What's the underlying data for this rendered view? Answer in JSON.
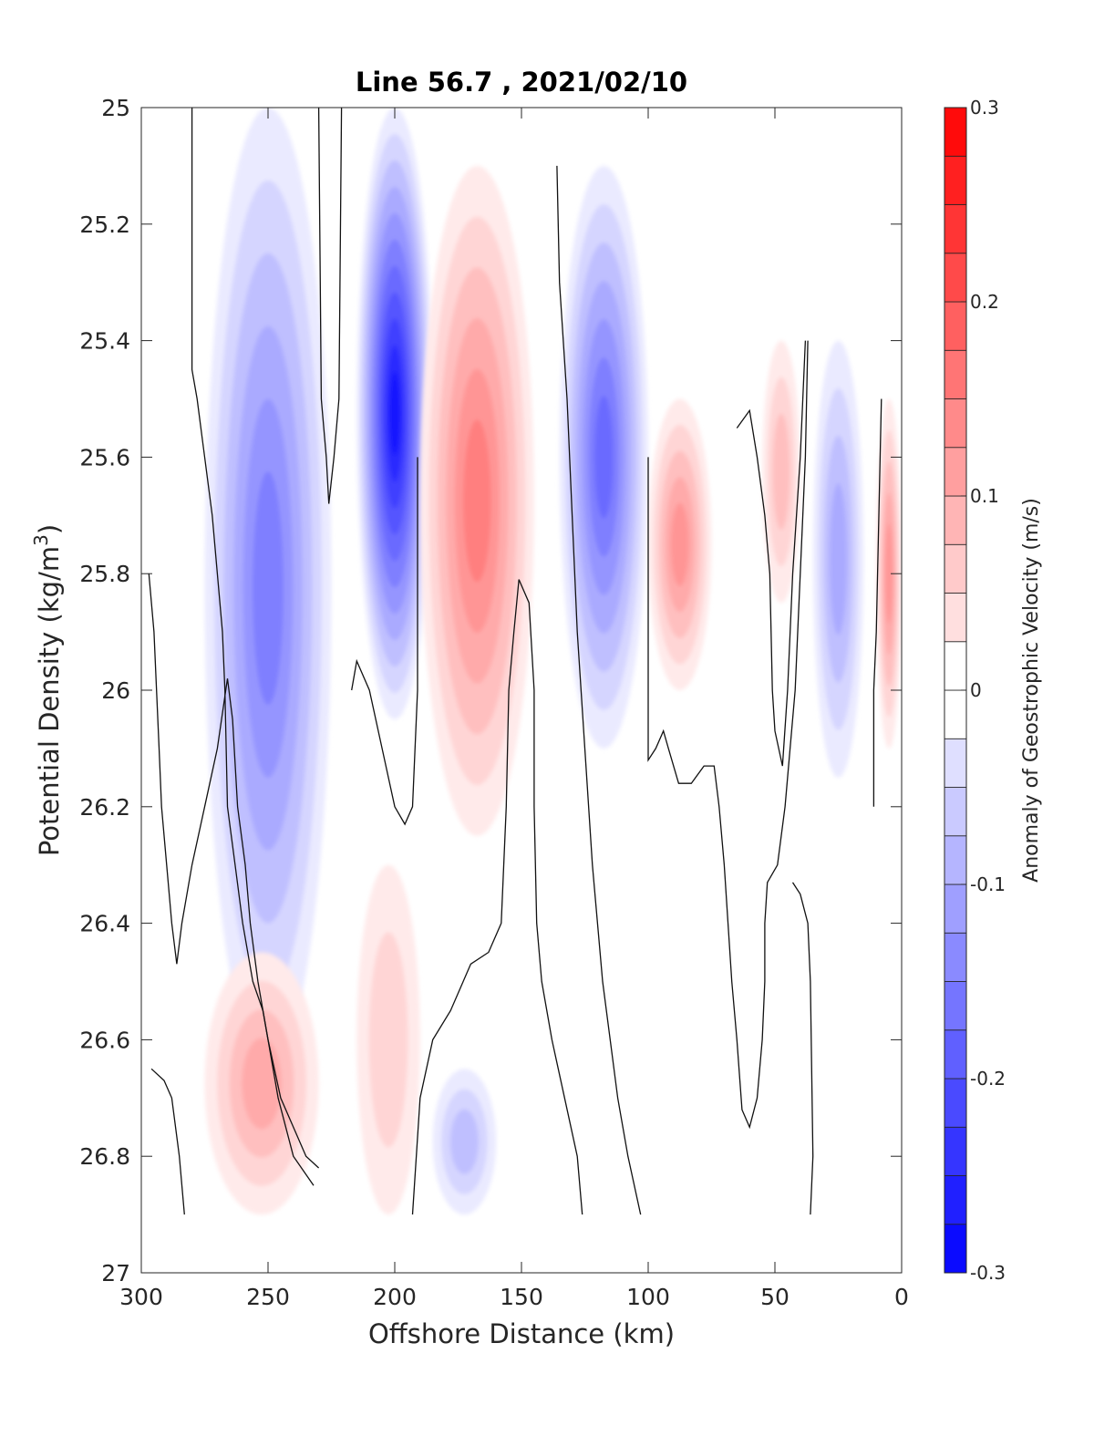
{
  "chart_data": {
    "type": "contour",
    "title": "Line 56.7 , 2021/02/10",
    "xlabel": "Offshore Distance (km)",
    "ylabel_main": "Potential Density (kg/m",
    "ylabel_sup": "3",
    "ylabel_close": ")",
    "xlim": [
      300,
      0
    ],
    "ylim": [
      27,
      25
    ],
    "y_reversed": true,
    "x_reversed": true,
    "xticks": [
      300,
      250,
      200,
      150,
      100,
      50,
      0
    ],
    "xtick_labels": [
      "300",
      "250",
      "200",
      "150",
      "100",
      "50",
      "0"
    ],
    "yticks": [
      25,
      25.2,
      25.4,
      25.6,
      25.8,
      26,
      26.2,
      26.4,
      26.6,
      26.8,
      27
    ],
    "ytick_labels": [
      "25",
      "25.2",
      "25.4",
      "25.6",
      "25.8",
      "26",
      "26.2",
      "26.4",
      "26.6",
      "26.8",
      "27"
    ],
    "grid": false,
    "colorbar": {
      "label": "Anomaly of Geostrophic Velocity (m/s)",
      "range": [
        -0.3,
        0.3
      ],
      "step": 0.025,
      "ticks": [
        0.3,
        0.2,
        0.1,
        0,
        -0.1,
        -0.2,
        -0.3
      ],
      "tick_labels": [
        "0.3",
        "0.2",
        "0.1",
        "0",
        "-0.1",
        "-0.2",
        "-0.3"
      ],
      "colormap": "blue-white-red",
      "negative_color": "#0000ff",
      "positive_color": "#ff0000"
    },
    "anomaly_regions": [
      {
        "name": "offshore-jet-negative",
        "sign": "negative",
        "peak": -0.15,
        "x_range": [
          275,
          225
        ],
        "y_range": [
          25.0,
          26.65
        ]
      },
      {
        "name": "core-jet-negative",
        "sign": "negative",
        "peak": -0.275,
        "x_range": [
          215,
          185
        ],
        "y_range": [
          25.0,
          26.05
        ]
      },
      {
        "name": "mid-section-positive",
        "sign": "positive",
        "peak": 0.15,
        "x_range": [
          190,
          145
        ],
        "y_range": [
          25.1,
          26.25
        ]
      },
      {
        "name": "nearshore-negative",
        "sign": "negative",
        "peak": -0.175,
        "x_range": [
          135,
          100
        ],
        "y_range": [
          25.1,
          26.1
        ]
      },
      {
        "name": "shelf-positive",
        "sign": "positive",
        "peak": 0.125,
        "x_range": [
          100,
          75
        ],
        "y_range": [
          25.5,
          26.0
        ]
      },
      {
        "name": "coastal-positive",
        "sign": "positive",
        "peak": 0.075,
        "x_range": [
          55,
          40
        ],
        "y_range": [
          25.4,
          25.85
        ]
      },
      {
        "name": "coastal-negative",
        "sign": "negative",
        "peak": -0.1,
        "x_range": [
          35,
          15
        ],
        "y_range": [
          25.4,
          26.15
        ]
      },
      {
        "name": "inshore-positive",
        "sign": "positive",
        "peak": 0.125,
        "x_range": [
          10,
          0
        ],
        "y_range": [
          25.5,
          26.1
        ]
      },
      {
        "name": "deep-offshore-positive",
        "sign": "positive",
        "peak": 0.1,
        "x_range": [
          275,
          230
        ],
        "y_range": [
          26.45,
          26.9
        ]
      },
      {
        "name": "deep-mid-positive",
        "sign": "positive",
        "peak": 0.05,
        "x_range": [
          215,
          190
        ],
        "y_range": [
          26.3,
          26.9
        ]
      },
      {
        "name": "deep-mid-negative",
        "sign": "negative",
        "peak": -0.075,
        "x_range": [
          185,
          160
        ],
        "y_range": [
          26.65,
          26.9
        ]
      }
    ],
    "zero_contours": [
      {
        "name": "zero-contour-1",
        "points": [
          [
            280,
            25.0
          ],
          [
            280,
            25.45
          ],
          [
            278,
            25.5
          ],
          [
            275,
            25.6
          ],
          [
            272,
            25.7
          ],
          [
            270,
            25.8
          ],
          [
            268,
            25.9
          ],
          [
            267,
            26.0
          ],
          [
            266,
            26.2
          ],
          [
            263,
            26.3
          ],
          [
            260,
            26.4
          ],
          [
            256,
            26.5
          ],
          [
            252,
            26.55
          ],
          [
            250,
            26.6
          ],
          [
            245,
            26.7
          ],
          [
            240,
            26.75
          ],
          [
            235,
            26.8
          ],
          [
            230,
            26.82
          ]
        ]
      },
      {
        "name": "zero-contour-2",
        "points": [
          [
            297,
            25.8
          ],
          [
            295,
            25.9
          ],
          [
            294,
            26.0
          ],
          [
            293,
            26.1
          ],
          [
            292,
            26.2
          ],
          [
            290,
            26.3
          ],
          [
            288,
            26.4
          ],
          [
            286,
            26.47
          ],
          [
            284,
            26.4
          ],
          [
            280,
            26.3
          ],
          [
            275,
            26.2
          ],
          [
            270,
            26.1
          ],
          [
            266,
            25.98
          ],
          [
            264,
            26.05
          ],
          [
            262,
            26.2
          ],
          [
            259,
            26.3
          ],
          [
            257,
            26.4
          ],
          [
            254,
            26.5
          ],
          [
            250,
            26.6
          ],
          [
            246,
            26.7
          ],
          [
            240,
            26.8
          ],
          [
            232,
            26.85
          ]
        ]
      },
      {
        "name": "zero-contour-3",
        "points": [
          [
            296,
            26.65
          ],
          [
            291,
            26.67
          ],
          [
            288,
            26.7
          ],
          [
            285,
            26.8
          ],
          [
            283,
            26.9
          ]
        ]
      },
      {
        "name": "zero-contour-4",
        "points": [
          [
            230,
            25.0
          ],
          [
            229,
            25.5
          ],
          [
            227,
            25.6
          ],
          [
            226,
            25.68
          ],
          [
            224,
            25.6
          ],
          [
            222,
            25.5
          ],
          [
            221,
            25.0
          ]
        ]
      },
      {
        "name": "zero-contour-5",
        "points": [
          [
            217,
            26.0
          ],
          [
            215,
            25.95
          ],
          [
            210,
            26.0
          ],
          [
            205,
            26.1
          ],
          [
            200,
            26.2
          ],
          [
            196,
            26.23
          ],
          [
            193,
            26.2
          ],
          [
            191,
            26.0
          ],
          [
            191,
            25.6
          ]
        ]
      },
      {
        "name": "zero-contour-6",
        "points": [
          [
            193,
            26.9
          ],
          [
            190,
            26.7
          ],
          [
            185,
            26.6
          ],
          [
            178,
            26.55
          ],
          [
            170,
            26.47
          ],
          [
            163,
            26.45
          ],
          [
            158,
            26.4
          ],
          [
            156,
            26.2
          ],
          [
            155,
            26.0
          ],
          [
            153,
            25.9
          ],
          [
            151,
            25.81
          ],
          [
            147,
            25.85
          ],
          [
            145,
            26.0
          ],
          [
            145,
            26.2
          ],
          [
            144,
            26.4
          ],
          [
            142,
            26.5
          ],
          [
            138,
            26.6
          ],
          [
            133,
            26.7
          ],
          [
            128,
            26.8
          ],
          [
            126,
            26.9
          ]
        ]
      },
      {
        "name": "zero-contour-7",
        "points": [
          [
            136,
            25.1
          ],
          [
            135,
            25.3
          ],
          [
            132,
            25.5
          ],
          [
            130,
            25.7
          ],
          [
            128,
            25.9
          ],
          [
            125,
            26.1
          ],
          [
            122,
            26.3
          ],
          [
            118,
            26.5
          ],
          [
            112,
            26.7
          ],
          [
            108,
            26.8
          ],
          [
            103,
            26.9
          ]
        ]
      },
      {
        "name": "zero-contour-8",
        "points": [
          [
            100,
            25.6
          ],
          [
            100,
            26.12
          ],
          [
            97,
            26.1
          ],
          [
            94,
            26.07
          ],
          [
            92,
            26.1
          ],
          [
            88,
            26.16
          ],
          [
            83,
            26.16
          ],
          [
            78,
            26.13
          ],
          [
            74,
            26.13
          ],
          [
            72,
            26.2
          ],
          [
            70,
            26.3
          ],
          [
            67,
            26.5
          ],
          [
            65,
            26.6
          ],
          [
            63,
            26.72
          ],
          [
            60,
            26.75
          ],
          [
            57,
            26.7
          ],
          [
            55,
            26.6
          ],
          [
            54,
            26.5
          ],
          [
            54,
            26.4
          ],
          [
            53,
            26.33
          ],
          [
            49,
            26.3
          ],
          [
            46,
            26.2
          ],
          [
            42,
            26.0
          ],
          [
            40,
            25.8
          ],
          [
            38,
            25.6
          ],
          [
            37,
            25.4
          ]
        ]
      },
      {
        "name": "zero-contour-9",
        "points": [
          [
            65,
            25.55
          ],
          [
            60,
            25.52
          ],
          [
            57,
            25.6
          ],
          [
            54,
            25.7
          ],
          [
            52,
            25.8
          ],
          [
            51,
            26.0
          ],
          [
            50,
            26.07
          ],
          [
            47,
            26.13
          ],
          [
            45,
            26.0
          ],
          [
            43,
            25.8
          ],
          [
            40,
            25.6
          ],
          [
            38,
            25.4
          ]
        ]
      },
      {
        "name": "zero-contour-10",
        "points": [
          [
            36,
            26.9
          ],
          [
            35,
            26.8
          ],
          [
            36,
            26.5
          ],
          [
            37,
            26.4
          ],
          [
            40,
            26.35
          ],
          [
            43,
            26.33
          ]
        ]
      },
      {
        "name": "zero-contour-11",
        "points": [
          [
            8,
            25.5
          ],
          [
            9,
            25.7
          ],
          [
            10,
            25.9
          ],
          [
            11,
            26.0
          ],
          [
            11,
            26.2
          ]
        ]
      }
    ]
  }
}
